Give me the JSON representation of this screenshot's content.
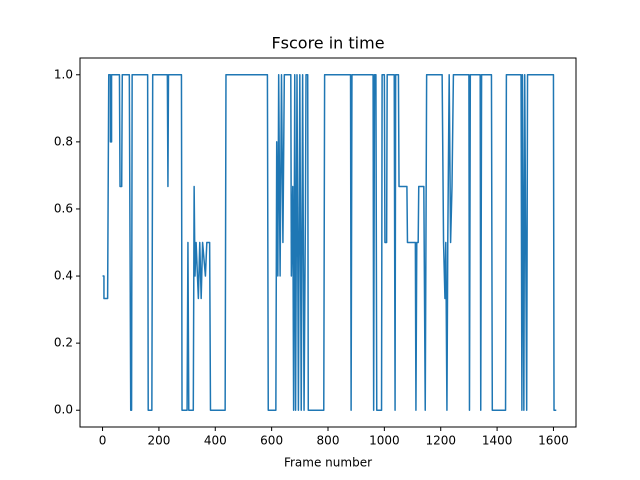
{
  "chart_data": {
    "type": "line",
    "title": "Fscore in time",
    "x_label": "Frame number",
    "x": [
      0,
      5,
      5,
      18,
      20,
      22,
      28,
      28,
      32,
      32,
      60,
      62,
      68,
      70,
      95,
      100,
      103,
      105,
      160,
      162,
      175,
      178,
      230,
      232,
      234,
      280,
      282,
      300,
      303,
      306,
      322,
      325,
      328,
      332,
      340,
      345,
      350,
      355,
      365,
      370,
      380,
      383,
      435,
      438,
      585,
      588,
      615,
      618,
      622,
      625,
      630,
      635,
      640,
      645,
      668,
      670,
      675,
      678,
      682,
      685,
      690,
      695,
      700,
      705,
      710,
      715,
      720,
      722,
      728,
      730,
      785,
      788,
      880,
      882,
      885,
      960,
      962,
      965,
      970,
      973,
      990,
      992,
      1000,
      1002,
      1008,
      1010,
      1035,
      1038,
      1040,
      1050,
      1052,
      1080,
      1082,
      1110,
      1112,
      1115,
      1120,
      1122,
      1140,
      1145,
      1150,
      1205,
      1210,
      1215,
      1218,
      1222,
      1225,
      1230,
      1235,
      1240,
      1245,
      1300,
      1302,
      1305,
      1340,
      1342,
      1345,
      1380,
      1383,
      1430,
      1433,
      1485,
      1488,
      1490,
      1495,
      1498,
      1505,
      1508,
      1600,
      1602,
      1610
    ],
    "series": [
      {
        "name": "fscore",
        "color": "#1f77b4",
        "values": [
          0.4,
          0.4,
          0.333,
          0.333,
          0.667,
          1,
          1,
          0.8,
          0.8,
          1,
          1,
          0.667,
          0.667,
          1,
          1,
          0,
          0,
          1,
          1,
          0,
          0,
          1,
          1,
          0.667,
          1,
          1,
          0,
          0,
          0.5,
          0,
          0,
          0.667,
          0.4,
          0.5,
          0.333,
          0.5,
          0.333,
          0.5,
          0.4,
          0.5,
          0.5,
          0,
          0,
          1,
          1,
          0,
          0,
          0.8,
          0.4,
          1,
          0.4,
          1,
          0.5,
          1,
          1,
          0.4,
          0.667,
          0,
          1,
          0,
          1,
          0,
          1,
          0,
          1,
          0,
          0.6,
          1,
          1,
          0,
          0,
          1,
          1,
          0,
          1,
          1,
          0,
          1,
          1,
          0,
          0,
          1,
          1,
          0.5,
          0.5,
          1,
          1,
          0,
          1,
          1,
          0.667,
          0.667,
          0.5,
          0.5,
          0,
          0.5,
          0.5,
          0.667,
          0.667,
          0,
          1,
          1,
          0.5,
          0.333,
          0.5,
          0,
          0.5,
          1,
          0.5,
          0.667,
          1,
          1,
          0,
          1,
          1,
          0,
          1,
          1,
          0,
          0,
          1,
          1,
          0,
          1,
          0,
          1,
          0,
          1,
          1,
          0,
          0
        ]
      }
    ],
    "xlim": [
      -80,
      1680
    ],
    "ylim": [
      -0.05,
      1.05
    ],
    "xticks": [
      0,
      200,
      400,
      600,
      800,
      1000,
      1200,
      1400,
      1600
    ],
    "yticks": [
      {
        "value": 0,
        "label": "0.0"
      },
      {
        "value": 0.2,
        "label": "0.2"
      },
      {
        "value": 0.4,
        "label": "0.4"
      },
      {
        "value": 0.6,
        "label": "0.6"
      },
      {
        "value": 0.8,
        "label": "0.8"
      },
      {
        "value": 1,
        "label": "1.0"
      }
    ],
    "grid": false
  }
}
